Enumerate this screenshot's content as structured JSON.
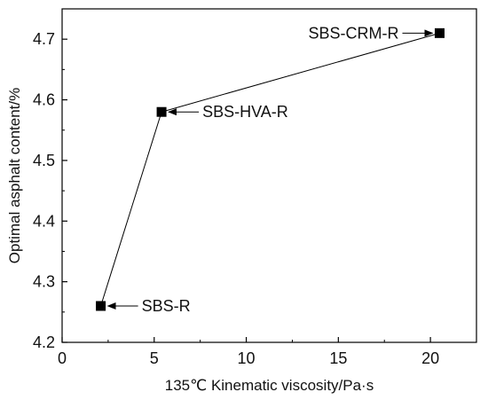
{
  "chart_data": {
    "type": "scatter",
    "xlabel": "135℃ Kinematic viscosity/Pa·s",
    "ylabel": "Optimal asphalt content/%",
    "xlim": [
      0,
      22.5
    ],
    "ylim": [
      4.2,
      4.75
    ],
    "xticks": [
      0,
      5,
      10,
      15,
      20
    ],
    "yticks": [
      4.2,
      4.3,
      4.4,
      4.5,
      4.6,
      4.7
    ],
    "xtick_labels": [
      "0",
      "5",
      "10",
      "15",
      "20"
    ],
    "ytick_labels": [
      "4.2",
      "4.3",
      "4.4",
      "4.5",
      "4.6",
      "4.7"
    ],
    "grid": false,
    "marker": "square",
    "connect_points": true,
    "points": [
      {
        "x": 2.1,
        "y": 4.26,
        "label": "SBS-R",
        "label_side": "right"
      },
      {
        "x": 5.4,
        "y": 4.58,
        "label": "SBS-HVA-R",
        "label_side": "right"
      },
      {
        "x": 20.5,
        "y": 4.71,
        "label": "SBS-CRM-R",
        "label_side": "left"
      }
    ],
    "colors": {
      "marker": "#000000",
      "line": "#000000",
      "axis": "#000000"
    }
  }
}
